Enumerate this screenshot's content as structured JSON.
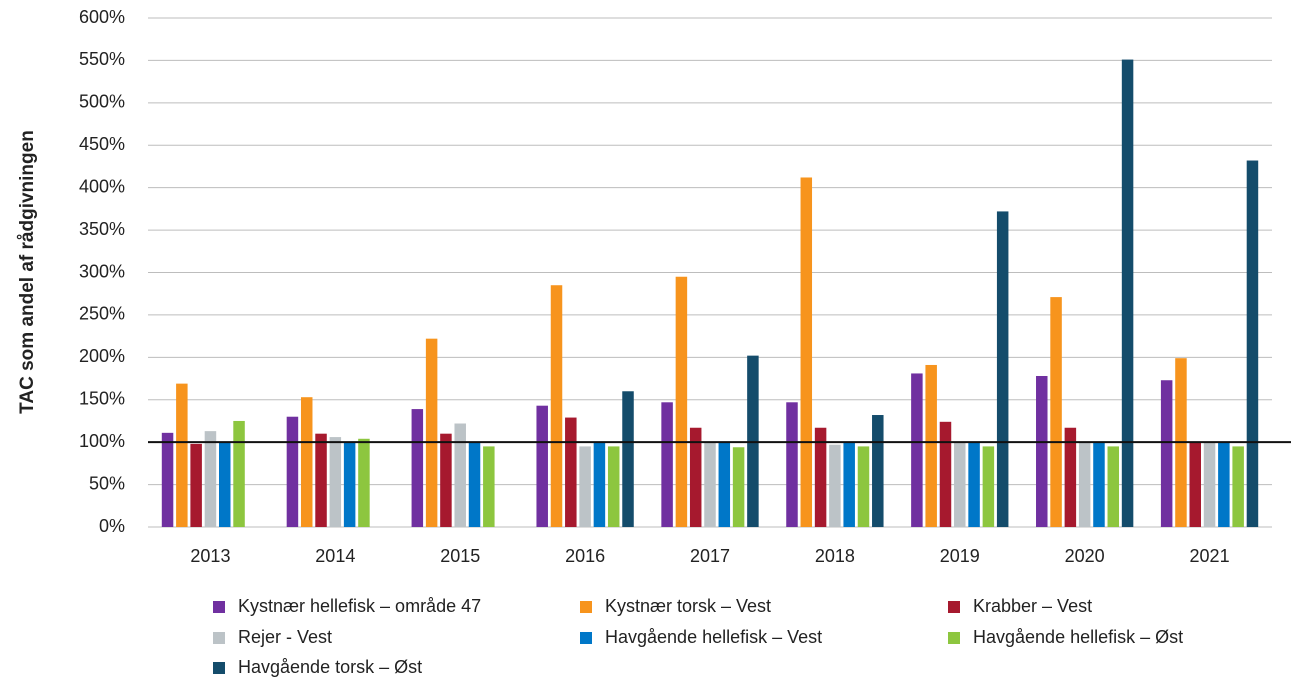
{
  "chart_data": {
    "type": "bar",
    "y_label": "TAC som andel af rådgivningen",
    "categories": [
      "2013",
      "2014",
      "2015",
      "2016",
      "2017",
      "2018",
      "2019",
      "2020",
      "2021"
    ],
    "series": [
      {
        "name": "Kystnær hellefisk – område 47",
        "color": "#7030a0",
        "values": [
          111,
          130,
          139,
          143,
          147,
          147,
          181,
          178,
          173
        ]
      },
      {
        "name": "Kystnær torsk – Vest",
        "color": "#f7941d",
        "values": [
          169,
          153,
          222,
          285,
          295,
          412,
          191,
          271,
          199
        ]
      },
      {
        "name": "Krabber – Vest",
        "color": "#a6192e",
        "values": [
          98,
          110,
          110,
          129,
          117,
          117,
          124,
          117,
          100
        ]
      },
      {
        "name": "Rejer - Vest",
        "color": "#bcc3c7",
        "values": [
          113,
          106,
          122,
          95,
          100,
          97,
          100,
          100,
          100
        ]
      },
      {
        "name": "Havgående hellefisk – Vest",
        "color": "#0077c8",
        "values": [
          100,
          100,
          100,
          100,
          100,
          100,
          100,
          100,
          100
        ]
      },
      {
        "name": "Havgående hellefisk – Øst",
        "color": "#8dc63f",
        "values": [
          125,
          104,
          95,
          95,
          94,
          95,
          95,
          95,
          95
        ]
      },
      {
        "name": "Havgående torsk – Øst",
        "color": "#144c6b",
        "values": [
          null,
          null,
          null,
          160,
          202,
          132,
          372,
          551,
          432
        ]
      }
    ],
    "ylim": [
      0,
      600
    ],
    "yticks": [
      {
        "value": 0,
        "label": "0%"
      },
      {
        "value": 50,
        "label": "50%"
      },
      {
        "value": 100,
        "label": "100%"
      },
      {
        "value": 150,
        "label": "150%"
      },
      {
        "value": 200,
        "label": "200%"
      },
      {
        "value": 250,
        "label": "250%"
      },
      {
        "value": 300,
        "label": "300%"
      },
      {
        "value": 350,
        "label": "350%"
      },
      {
        "value": 400,
        "label": "400%"
      },
      {
        "value": 450,
        "label": "450%"
      },
      {
        "value": 500,
        "label": "500%"
      },
      {
        "value": 550,
        "label": "550%"
      },
      {
        "value": 600,
        "label": "600%"
      }
    ],
    "reference_line": 100,
    "grid": true
  }
}
